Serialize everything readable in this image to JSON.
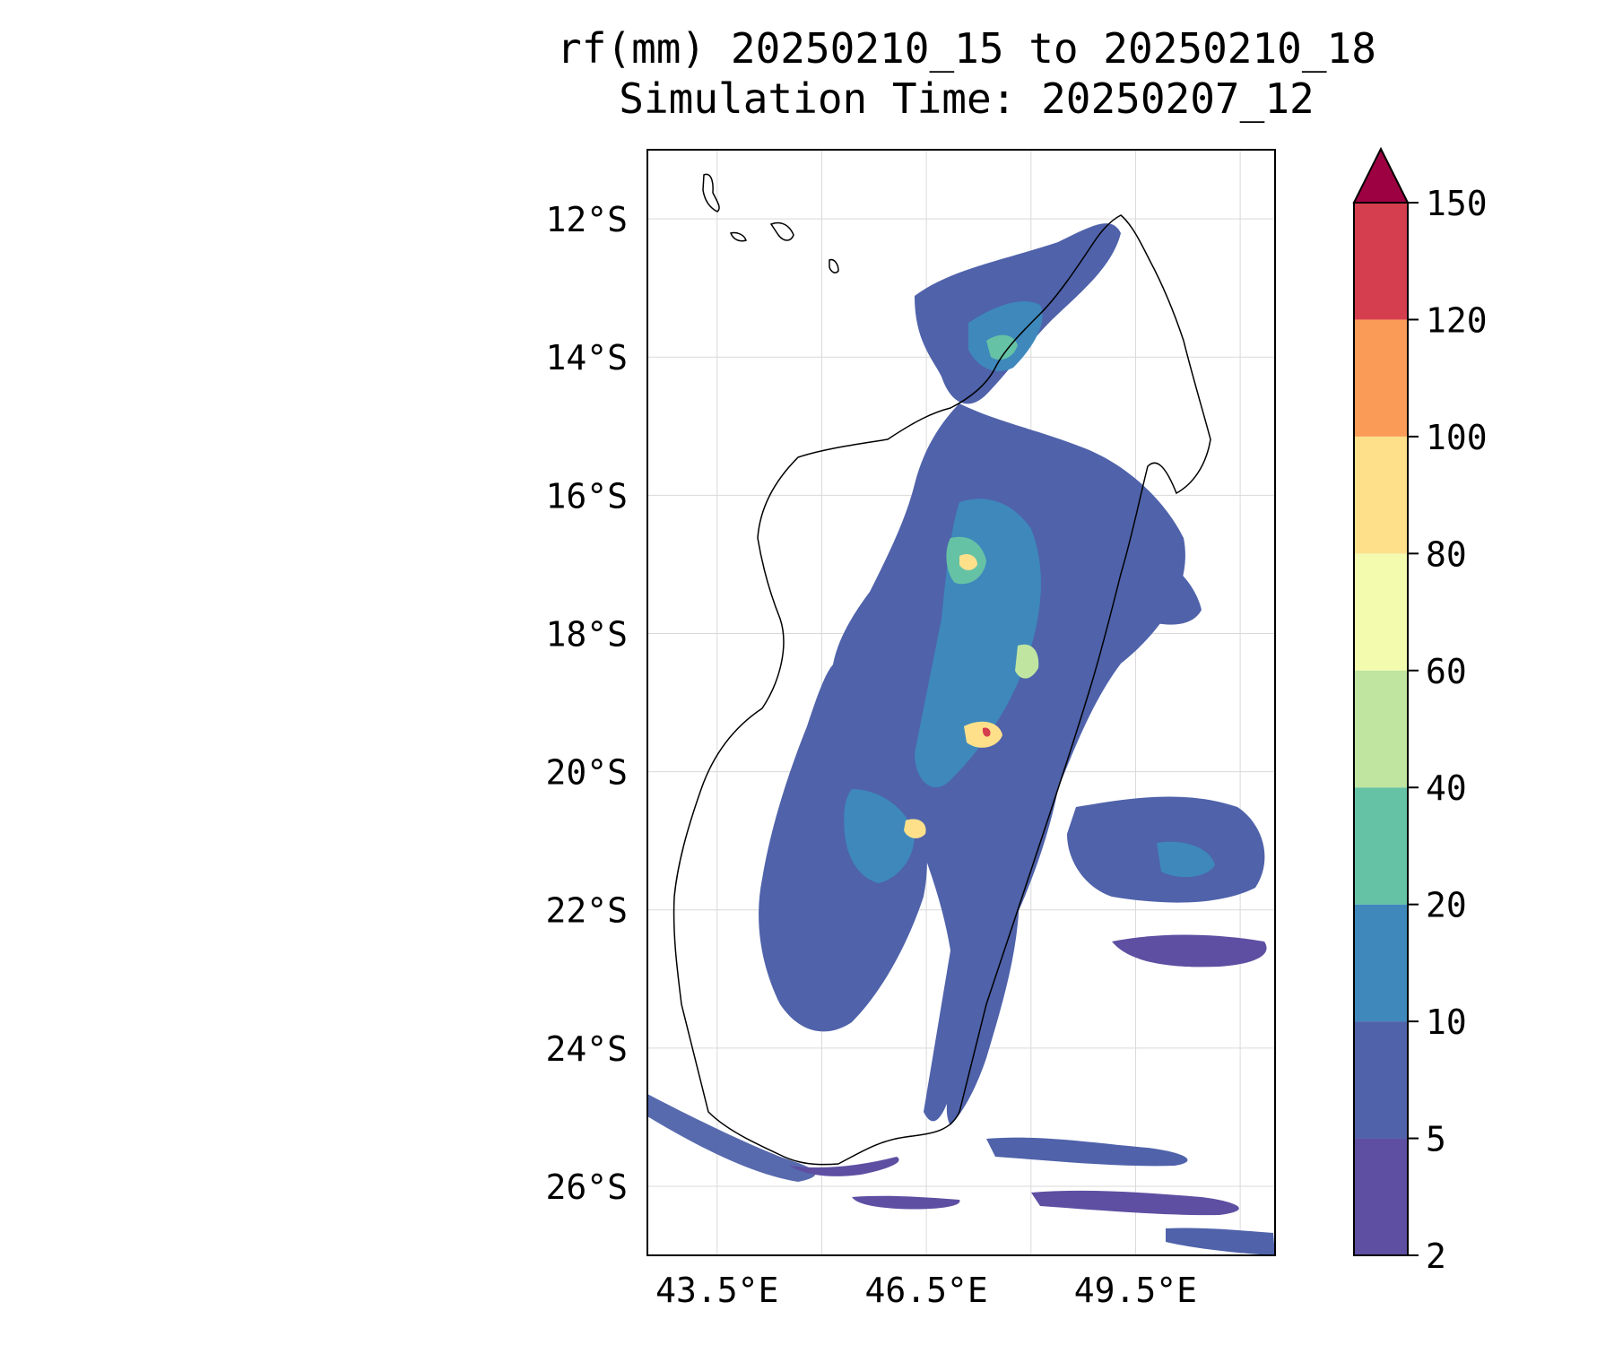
{
  "title": {
    "line1": "rf(mm) 20250210_15 to 20250210_18",
    "line2": "Simulation Time: 20250207_12"
  },
  "map": {
    "lon_range": [
      42.5,
      51.5
    ],
    "lat_range": [
      -27.0,
      -11.0
    ],
    "lat_ticks": [
      {
        "value": -12,
        "label": "12°S"
      },
      {
        "value": -14,
        "label": "14°S"
      },
      {
        "value": -16,
        "label": "16°S"
      },
      {
        "value": -18,
        "label": "18°S"
      },
      {
        "value": -20,
        "label": "20°S"
      },
      {
        "value": -22,
        "label": "22°S"
      },
      {
        "value": -24,
        "label": "24°S"
      },
      {
        "value": -26,
        "label": "26°S"
      }
    ],
    "lon_ticks": [
      {
        "value": 43.5,
        "label": "43.5°E"
      },
      {
        "value": 46.5,
        "label": "46.5°E"
      },
      {
        "value": 49.5,
        "label": "49.5°E"
      }
    ],
    "lon_gridlines": [
      43.5,
      45.0,
      46.5,
      48.0,
      49.5,
      51.0
    ],
    "lat_gridlines": [
      -12,
      -14,
      -16,
      -18,
      -20,
      -22,
      -24,
      -26
    ],
    "grid": true
  },
  "colorbar": {
    "extend": "max",
    "extend_color": "#9e0142",
    "boundaries": [
      {
        "label": "2",
        "value": 2
      },
      {
        "label": "5",
        "value": 5
      },
      {
        "label": "10",
        "value": 10
      },
      {
        "label": "20",
        "value": 20
      },
      {
        "label": "40",
        "value": 40
      },
      {
        "label": "60",
        "value": 60
      },
      {
        "label": "80",
        "value": 80
      },
      {
        "label": "100",
        "value": 100
      },
      {
        "label": "120",
        "value": 120
      },
      {
        "label": "150",
        "value": 150
      }
    ],
    "colors": [
      "#5e4fa2",
      "#4f62aa",
      "#3e88bc",
      "#66c2a5",
      "#bfe5a0",
      "#f3fbae",
      "#fee08b",
      "#fa9b58",
      "#d53e4f"
    ]
  },
  "rain_cells": [
    {
      "lon": 43.5,
      "lat": -25.2,
      "level": 0
    }
  ]
}
